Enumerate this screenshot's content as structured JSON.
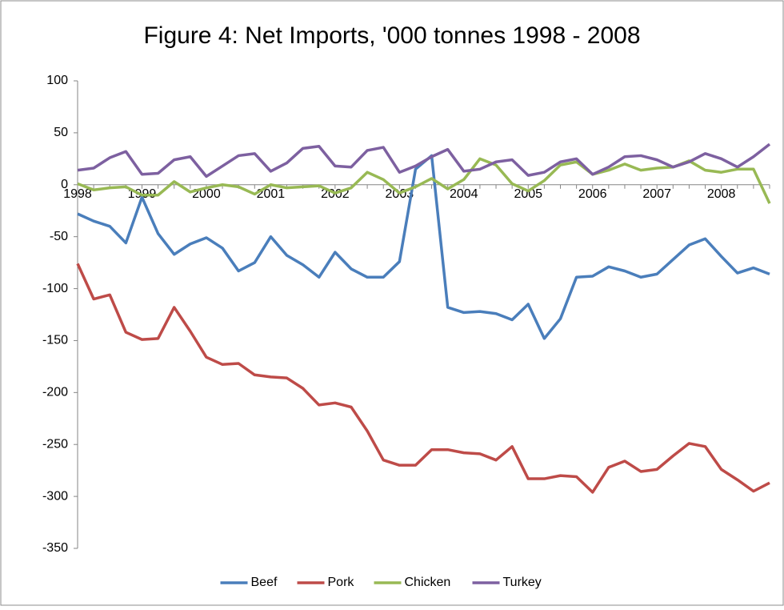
{
  "chart_data": {
    "type": "line",
    "title": "Figure 4: Net Imports, '000 tonnes  1998 - 2008",
    "categories": [
      "1998",
      null,
      null,
      null,
      "1999",
      null,
      null,
      null,
      "2000",
      null,
      null,
      null,
      "2001",
      null,
      null,
      null,
      "2002",
      null,
      null,
      null,
      "2003",
      null,
      null,
      null,
      "2004",
      null,
      null,
      null,
      "2005",
      null,
      null,
      null,
      "2006",
      null,
      null,
      null,
      "2007",
      null,
      null,
      null,
      "2008",
      null,
      null,
      null
    ],
    "series": [
      {
        "name": "Beef",
        "color": "#4a7ebb",
        "values": [
          -28,
          -35,
          -40,
          -56,
          -12,
          -47,
          -67,
          -57,
          -51,
          -61,
          -83,
          -75,
          -50,
          -68,
          -77,
          -89,
          -65,
          -81,
          -89,
          -89,
          -74,
          15,
          28,
          -118,
          -123,
          -122,
          -124,
          -130,
          -115,
          -148,
          -129,
          -89,
          -88,
          -79,
          -83,
          -89,
          -86,
          -72,
          -58,
          -52,
          -69,
          -85,
          -80,
          -86
        ]
      },
      {
        "name": "Pork",
        "color": "#be4b48",
        "values": [
          -76,
          -110,
          -106,
          -142,
          -149,
          -148,
          -118,
          -141,
          -166,
          -173,
          -172,
          -183,
          -185,
          -186,
          -196,
          -212,
          -210,
          -214,
          -237,
          -265,
          -270,
          -270,
          -255,
          -255,
          -258,
          -259,
          -265,
          -252,
          -283,
          -283,
          -280,
          -281,
          -296,
          -272,
          -266,
          -276,
          -274,
          -261,
          -249,
          -252,
          -274,
          -284,
          -295,
          -287
        ]
      },
      {
        "name": "Chicken",
        "color": "#98b954",
        "values": [
          1,
          -5,
          -3,
          -2,
          -10,
          -10,
          3,
          -7,
          -3,
          0,
          -2,
          -9,
          0,
          -3,
          -2,
          -1,
          -8,
          -3,
          12,
          5,
          -8,
          -2,
          6,
          -4,
          5,
          25,
          19,
          1,
          -6,
          4,
          19,
          22,
          10,
          14,
          20,
          14,
          16,
          17,
          23,
          14,
          12,
          15,
          15,
          -18
        ]
      },
      {
        "name": "Turkey",
        "color": "#7d60a0",
        "values": [
          14,
          16,
          26,
          32,
          10,
          11,
          24,
          27,
          8,
          18,
          28,
          30,
          13,
          21,
          35,
          37,
          18,
          17,
          33,
          36,
          12,
          18,
          27,
          34,
          13,
          15,
          22,
          24,
          9,
          12,
          22,
          25,
          10,
          17,
          27,
          28,
          24,
          17,
          22,
          30,
          25,
          17,
          27,
          39
        ]
      }
    ],
    "ylim": [
      -350,
      100
    ],
    "yticks": [
      -350,
      -300,
      -250,
      -200,
      -150,
      -100,
      -50,
      0,
      50,
      100
    ],
    "legend": "bottom"
  }
}
